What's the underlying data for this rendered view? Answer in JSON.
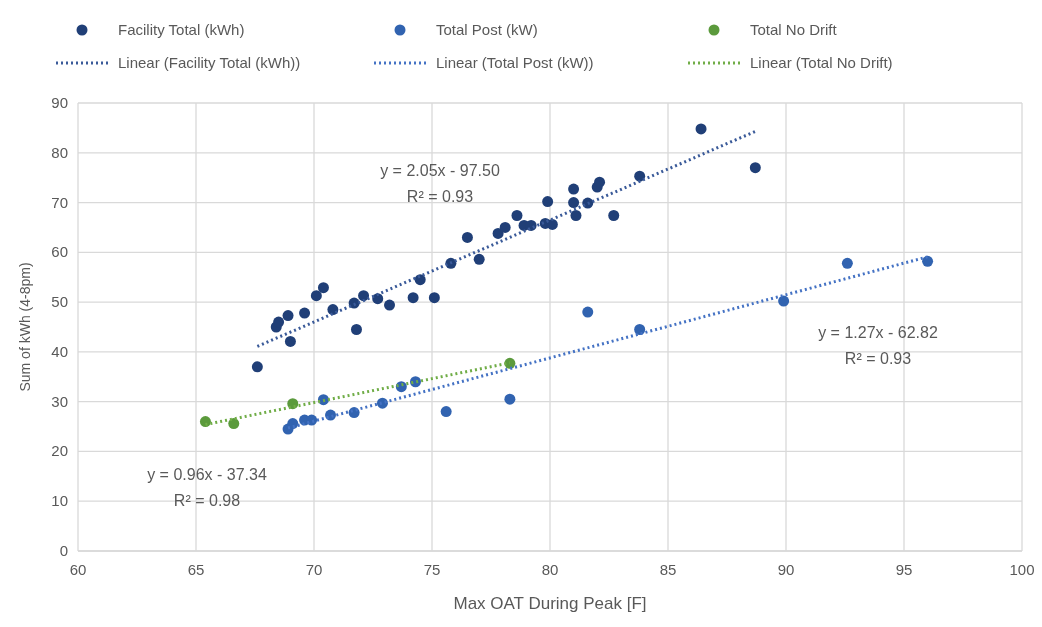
{
  "chart_data": {
    "type": "scatter",
    "xlabel": "Max OAT During Peak [F]",
    "ylabel": "Sum of kWh (4-8pm)",
    "xlim": [
      60,
      100
    ],
    "xticks": [
      60,
      65,
      70,
      75,
      80,
      85,
      90,
      95,
      100
    ],
    "ylim": [
      0,
      90
    ],
    "yticks": [
      0,
      10,
      20,
      30,
      40,
      50,
      60,
      70,
      80,
      90
    ],
    "grid": true,
    "legend": "top",
    "marker": "circle",
    "series": [
      {
        "name": "Facility Total (kWh)",
        "color": "#203f77",
        "x": [
          67.6,
          68.4,
          68.5,
          68.9,
          69.0,
          69.6,
          70.1,
          70.4,
          70.8,
          71.7,
          71.8,
          72.1,
          72.7,
          73.2,
          74.2,
          74.5,
          75.1,
          75.8,
          76.5,
          77.0,
          77.8,
          78.1,
          78.6,
          78.9,
          79.2,
          79.8,
          79.9,
          80.1,
          81.0,
          81.0,
          81.1,
          81.6,
          82.0,
          82.1,
          82.7,
          83.8,
          86.4,
          88.7
        ],
        "values": [
          37,
          45,
          46,
          47.3,
          42.1,
          47.8,
          51.3,
          52.9,
          48.5,
          49.8,
          44.5,
          51.3,
          50.7,
          49.4,
          50.9,
          54.5,
          50.9,
          57.8,
          63,
          58.6,
          63.8,
          65,
          67.4,
          65.4,
          65.4,
          65.8,
          70.2,
          65.6,
          70,
          72.7,
          67.4,
          69.9,
          73.1,
          74.1,
          67.4,
          75.3,
          84.8,
          77
        ]
      },
      {
        "name": "Total Post (kW)",
        "color": "#3163b0",
        "x": [
          68.9,
          69.1,
          69.6,
          69.9,
          70.4,
          70.7,
          71.7,
          72.9,
          73.7,
          74.3,
          75.6,
          78.3,
          81.6,
          83.8,
          89.9,
          92.6,
          96.0
        ],
        "values": [
          24.5,
          25.6,
          26.3,
          26.3,
          30.4,
          27.3,
          27.8,
          29.7,
          33,
          34,
          28,
          30.5,
          48,
          44.5,
          50.2,
          57.8,
          58.2
        ]
      },
      {
        "name": "Total No Drift",
        "color": "#5b9a3c",
        "x": [
          65.4,
          66.6,
          69.1,
          78.3
        ],
        "values": [
          26,
          25.6,
          29.6,
          37.7
        ]
      },
      {
        "name": "Linear (Facility Total (kWh))",
        "type": "line",
        "line_style": "dotted",
        "marker": "none",
        "color": "#3a5a99",
        "x": [
          67.6,
          88.7
        ],
        "values": [
          41.1,
          84.3
        ]
      },
      {
        "name": "Linear (Total Post (kW))",
        "type": "line",
        "line_style": "dotted",
        "marker": "none",
        "color": "#4472c4",
        "x": [
          68.9,
          96.0
        ],
        "values": [
          24.7,
          59.1
        ]
      },
      {
        "name": "Linear (Total No Drift)",
        "type": "line",
        "line_style": "dotted",
        "marker": "none",
        "color": "#70ad47",
        "x": [
          65.4,
          78.3
        ],
        "values": [
          25.4,
          37.8
        ]
      }
    ],
    "annotations": [
      "y = 2.05x - 97.50",
      "R² = 0.93",
      "y = 1.27x - 62.82",
      "R² = 0.93",
      "y = 0.96x - 37.34",
      "R² = 0.98"
    ]
  }
}
